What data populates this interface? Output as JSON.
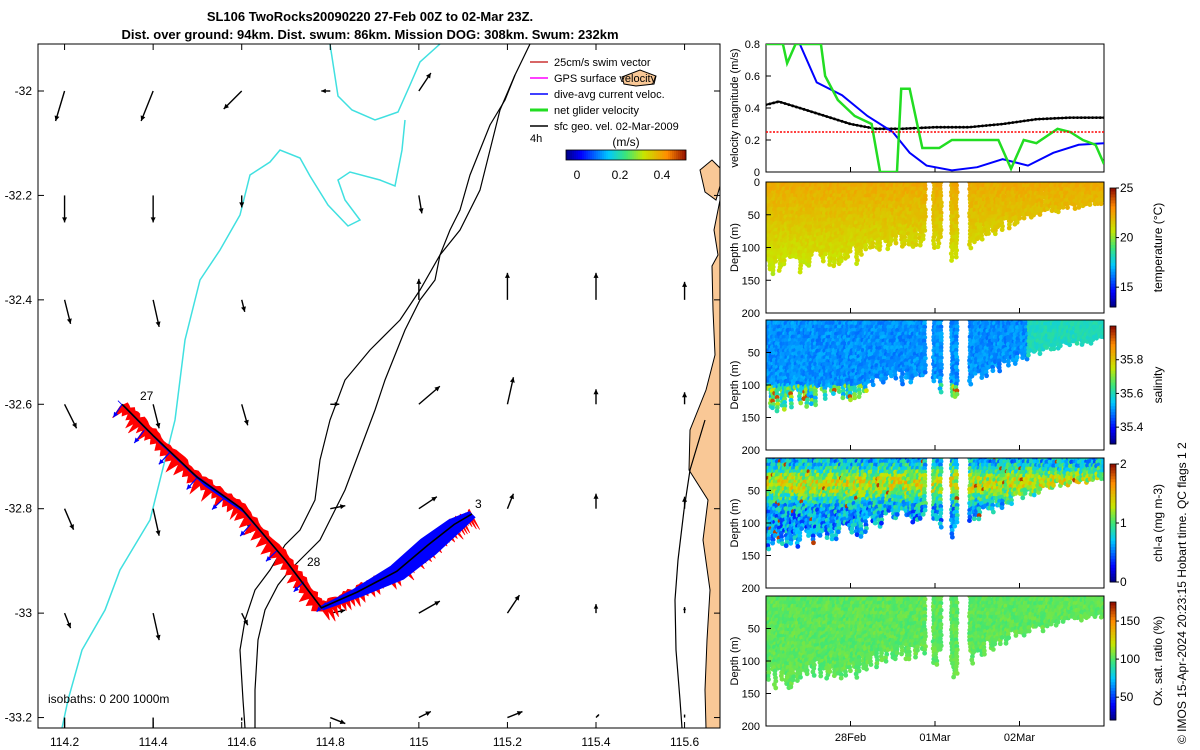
{
  "header": {
    "title_line1": "SL106 TwoRocks20090220 27-Feb 00Z to 02-Mar 23Z.",
    "title_line2": "Dist. over ground: 94km. Dist. swum: 86km. Mission DOG: 308km. Swum: 232km"
  },
  "colors": {
    "land": "#f9c896",
    "isobath_200": "#40e0e0",
    "isobath_1000": "#000000",
    "track_red": "#ff0000",
    "track_blue": "#0000ff",
    "net_green": "#22dd22",
    "swim_red": "#cc3333",
    "gps_magenta": "#ff00ff"
  },
  "map": {
    "legend": {
      "items": [
        {
          "label": "25cm/s swim vector",
          "color": "#cc3333"
        },
        {
          "label": "GPS surface velocity",
          "color": "#ff00ff"
        },
        {
          "label": "dive-avg current veloc.",
          "color": "#0000ff"
        },
        {
          "label": "net glider velocity",
          "color": "#22dd22"
        },
        {
          "label": "sfc geo. vel. 02-Mar-2009",
          "color": "#000000"
        }
      ],
      "time_label": "4h"
    },
    "colorbar": {
      "label": "(m/s)",
      "ticks": [
        "0",
        "0.2",
        "0.4"
      ],
      "range": [
        -0.02,
        0.46
      ]
    },
    "isobaths_label": "isobaths: 0   200  1000m",
    "track_labels": [
      "27",
      "28",
      "3"
    ]
  },
  "panels": {
    "velocity": {
      "ylabel": "velocity magnitude (m/s)",
      "yticks": [
        "0",
        "0.2",
        "0.4",
        "0.6",
        "0.8"
      ]
    },
    "temperature": {
      "ylabel": "Depth (m)",
      "cbar_label": "temperature (°C)",
      "cbar_ticks": [
        "15",
        "20",
        "25"
      ]
    },
    "salinity": {
      "ylabel": "Depth (m)",
      "cbar_label": "salinity",
      "cbar_ticks": [
        "35.4",
        "35.6",
        "35.8"
      ]
    },
    "chla": {
      "ylabel": "Depth (m)",
      "cbar_label": "chl-a (mg m-3)",
      "cbar_ticks": [
        "0",
        "1",
        "2"
      ]
    },
    "oxygen": {
      "ylabel": "Depth (m)",
      "cbar_label": "Ox. sat. ratio (%)",
      "cbar_ticks": [
        "50",
        "100",
        "150"
      ]
    },
    "depth_ticks": [
      "0",
      "50",
      "100",
      "150",
      "200"
    ],
    "xtick_labels": [
      "28Feb",
      "01Mar",
      "02Mar"
    ]
  },
  "footer": {
    "credit": "© IMOS 15-Apr-2024 20:23:15 Hobart time. QC flags 1  2"
  },
  "chart_data": [
    {
      "type": "scatter",
      "name": "map",
      "xlim": [
        114.14,
        115.68
      ],
      "ylim": [
        -33.22,
        -31.91
      ],
      "xticks": [
        114.2,
        114.4,
        114.6,
        114.8,
        115,
        115.2,
        115.4,
        115.6
      ],
      "xtick_labels": [
        "114.2",
        "114.4",
        "114.6",
        "114.8",
        "115",
        "115.2",
        "115.4",
        "115.6"
      ],
      "yticks": [
        -32,
        -32.2,
        -32.4,
        -32.6,
        -32.8,
        -33,
        -33.2
      ],
      "ytick_labels": [
        "-32",
        "-32.2",
        "-32.4",
        "-32.6",
        "-32.8",
        "-33",
        "-33.2"
      ],
      "track": [
        [
          114.33,
          -32.6
        ],
        [
          114.4,
          -32.66
        ],
        [
          114.5,
          -32.74
        ],
        [
          114.6,
          -32.8
        ],
        [
          114.7,
          -32.9
        ],
        [
          114.78,
          -32.99
        ],
        [
          114.86,
          -32.96
        ],
        [
          114.95,
          -32.92
        ],
        [
          115.02,
          -32.87
        ],
        [
          115.08,
          -32.83
        ],
        [
          115.12,
          -32.81
        ]
      ],
      "current_vectors": [
        [
          114.33,
          -32.6,
          0.22,
          0.29
        ],
        [
          114.38,
          -32.65,
          0.25,
          0.28
        ],
        [
          114.44,
          -32.69,
          0.3,
          0.29
        ],
        [
          114.5,
          -32.74,
          0.27,
          0.27
        ],
        [
          114.56,
          -32.78,
          0.3,
          0.25
        ],
        [
          114.62,
          -32.83,
          0.26,
          0.26
        ],
        [
          114.68,
          -32.88,
          0.28,
          0.24
        ],
        [
          114.74,
          -32.94,
          0.25,
          0.22
        ],
        [
          114.79,
          -32.98,
          0.23,
          0.2
        ],
        [
          114.85,
          -32.96,
          0.2,
          0.18
        ],
        [
          114.91,
          -32.94,
          0.17,
          0.17
        ],
        [
          114.97,
          -32.9,
          0.15,
          0.16
        ],
        [
          115.03,
          -32.86,
          0.12,
          0.15
        ],
        [
          115.08,
          -32.83,
          0.1,
          0.14
        ]
      ],
      "sfc_geo_vectors": [
        [
          114.2,
          -32.0,
          -0.03,
          -0.1
        ],
        [
          114.4,
          -32.0,
          -0.04,
          -0.1
        ],
        [
          114.6,
          -32.0,
          -0.06,
          -0.06
        ],
        [
          114.8,
          -32.0,
          -0.03,
          0.0
        ],
        [
          115.0,
          -32.0,
          0.04,
          0.06
        ],
        [
          114.2,
          -32.2,
          0.0,
          -0.09
        ],
        [
          114.4,
          -32.2,
          0.0,
          -0.09
        ],
        [
          114.6,
          -32.2,
          0.0,
          -0.04
        ],
        [
          114.8,
          -32.2,
          0.0,
          0.0
        ],
        [
          115.0,
          -32.2,
          0.01,
          -0.06
        ],
        [
          114.2,
          -32.4,
          0.02,
          -0.08
        ],
        [
          114.4,
          -32.4,
          0.02,
          -0.09
        ],
        [
          114.6,
          -32.4,
          0.01,
          -0.04
        ],
        [
          114.8,
          -32.4,
          0.0,
          0.0
        ],
        [
          115.0,
          -32.4,
          0.0,
          0.07
        ],
        [
          115.2,
          -32.4,
          0.0,
          0.09
        ],
        [
          115.4,
          -32.4,
          0.0,
          0.09
        ],
        [
          115.6,
          -32.4,
          0.0,
          0.06
        ],
        [
          114.2,
          -32.6,
          0.04,
          -0.08
        ],
        [
          114.4,
          -32.6,
          0.02,
          -0.08
        ],
        [
          114.6,
          -32.6,
          0.02,
          -0.07
        ],
        [
          114.8,
          -32.6,
          0.03,
          0.0
        ],
        [
          115.0,
          -32.6,
          0.07,
          0.06
        ],
        [
          115.2,
          -32.6,
          0.02,
          0.09
        ],
        [
          115.4,
          -32.6,
          0.0,
          0.05
        ],
        [
          115.6,
          -32.6,
          0.0,
          0.04
        ],
        [
          114.2,
          -32.8,
          0.03,
          -0.07
        ],
        [
          114.4,
          -32.8,
          0.02,
          -0.09
        ],
        [
          114.6,
          -32.8,
          0.03,
          -0.08
        ],
        [
          114.8,
          -32.8,
          0.05,
          0.01
        ],
        [
          115.0,
          -32.8,
          0.06,
          0.04
        ],
        [
          115.2,
          -32.8,
          0.02,
          0.05
        ],
        [
          115.4,
          -32.8,
          0.0,
          0.05
        ],
        [
          115.6,
          -32.8,
          0.0,
          0.04
        ],
        [
          114.2,
          -33.0,
          0.02,
          -0.05
        ],
        [
          114.4,
          -33.0,
          0.02,
          -0.09
        ],
        [
          114.6,
          -33.0,
          0.02,
          -0.04
        ],
        [
          114.8,
          -33.0,
          0.05,
          0.01
        ],
        [
          115.0,
          -33.0,
          0.07,
          0.04
        ],
        [
          115.2,
          -33.0,
          0.04,
          0.06
        ],
        [
          115.4,
          -33.0,
          0.0,
          0.03
        ],
        [
          115.6,
          -33.0,
          0.0,
          0.02
        ],
        [
          114.2,
          -33.2,
          0.0,
          -0.06
        ],
        [
          114.4,
          -33.2,
          0.0,
          -0.05
        ],
        [
          114.6,
          -33.2,
          0.0,
          -0.01
        ],
        [
          114.8,
          -33.2,
          0.05,
          -0.02
        ],
        [
          115.0,
          -33.2,
          0.04,
          0.02
        ],
        [
          115.2,
          -33.2,
          0.05,
          0.02
        ],
        [
          115.4,
          -33.2,
          0.01,
          0.01
        ],
        [
          115.6,
          -33.2,
          0.0,
          0.01
        ]
      ]
    },
    {
      "type": "line",
      "name": "velocity-magnitude",
      "ylabel": "velocity magnitude (m/s)",
      "ylim": [
        0,
        0.8
      ],
      "xlim": [
        0.0,
        4.0
      ],
      "xtick_positions": [
        1.0,
        2.0,
        3.0
      ],
      "series": [
        {
          "key": "black",
          "color": "#000000",
          "x": [
            0.0,
            0.15,
            0.4,
            0.7,
            1.0,
            1.3,
            1.6,
            2.0,
            2.4,
            2.8,
            3.2,
            3.6,
            4.0
          ],
          "y": [
            0.42,
            0.44,
            0.4,
            0.35,
            0.3,
            0.27,
            0.27,
            0.28,
            0.28,
            0.3,
            0.33,
            0.34,
            0.34
          ]
        },
        {
          "key": "blue",
          "color": "#0000ff",
          "x": [
            0.4,
            0.6,
            0.9,
            1.2,
            1.5,
            1.7,
            1.9,
            2.2,
            2.5,
            2.8,
            3.1,
            3.4,
            3.7,
            4.0
          ],
          "y": [
            0.8,
            0.56,
            0.48,
            0.35,
            0.25,
            0.12,
            0.04,
            0.01,
            0.03,
            0.08,
            0.04,
            0.12,
            0.17,
            0.18
          ]
        },
        {
          "key": "green",
          "color": "#22dd22",
          "x": [
            0.0,
            0.2,
            0.25,
            0.35,
            0.65,
            0.7,
            0.85,
            1.05,
            1.25,
            1.35,
            1.4,
            1.55,
            1.6,
            1.7,
            1.85,
            2.05,
            2.2,
            2.4,
            2.6,
            2.75,
            2.9,
            3.05,
            3.2,
            3.45,
            3.6,
            3.75,
            3.9,
            4.0
          ],
          "y": [
            0.8,
            0.8,
            0.68,
            0.8,
            0.8,
            0.6,
            0.45,
            0.35,
            0.3,
            0.0,
            0.0,
            0.0,
            0.52,
            0.52,
            0.15,
            0.15,
            0.2,
            0.2,
            0.2,
            0.2,
            0.02,
            0.2,
            0.18,
            0.27,
            0.25,
            0.2,
            0.17,
            0.05
          ]
        },
        {
          "key": "red",
          "color": "#ff0000",
          "x": [
            0.0,
            4.0
          ],
          "y": [
            0.25,
            0.25
          ]
        }
      ]
    },
    {
      "type": "scatter",
      "name": "temperature",
      "ylim": [
        200,
        0
      ],
      "value_range": [
        13,
        25
      ],
      "gaps": [
        [
          1.9,
          1.96
        ],
        [
          2.08,
          2.18
        ],
        [
          2.28,
          2.4
        ]
      ],
      "depth_profile": [
        [
          0.0,
          130
        ],
        [
          0.3,
          130
        ],
        [
          0.6,
          120
        ],
        [
          1.0,
          118
        ],
        [
          1.5,
          90
        ],
        [
          1.9,
          90
        ],
        [
          2.3,
          120
        ],
        [
          2.6,
          80
        ],
        [
          3.0,
          60
        ],
        [
          3.5,
          40
        ],
        [
          4.0,
          30
        ]
      ],
      "value_surface": 22,
      "value_bottom": 20
    },
    {
      "type": "scatter",
      "name": "salinity",
      "ylim": [
        200,
        0
      ],
      "value_range": [
        35.3,
        36.0
      ],
      "gaps": [
        [
          1.9,
          1.96
        ],
        [
          2.08,
          2.18
        ],
        [
          2.28,
          2.4
        ]
      ],
      "depth_profile": [
        [
          0.0,
          130
        ],
        [
          0.3,
          130
        ],
        [
          0.6,
          120
        ],
        [
          1.0,
          118
        ],
        [
          1.5,
          90
        ],
        [
          1.9,
          90
        ],
        [
          2.3,
          120
        ],
        [
          2.6,
          80
        ],
        [
          3.0,
          60
        ],
        [
          3.5,
          40
        ],
        [
          4.0,
          30
        ]
      ],
      "value_surface": 35.5,
      "value_bottom": 35.72
    },
    {
      "type": "scatter",
      "name": "chla",
      "ylim": [
        200,
        0
      ],
      "value_range": [
        0,
        2
      ],
      "gaps": [
        [
          1.9,
          1.96
        ],
        [
          2.08,
          2.18
        ],
        [
          2.28,
          2.4
        ]
      ],
      "depth_profile": [
        [
          0.0,
          130
        ],
        [
          0.3,
          130
        ],
        [
          0.6,
          120
        ],
        [
          1.0,
          118
        ],
        [
          1.5,
          90
        ],
        [
          1.9,
          90
        ],
        [
          2.3,
          120
        ],
        [
          2.6,
          80
        ],
        [
          3.0,
          60
        ],
        [
          3.5,
          40
        ],
        [
          4.0,
          30
        ]
      ],
      "value_surface": 0.9,
      "value_bottom": 0.5
    },
    {
      "type": "scatter",
      "name": "oxygen",
      "ylim": [
        200,
        0
      ],
      "value_range": [
        20,
        175
      ],
      "gaps": [
        [
          1.9,
          1.96
        ],
        [
          2.08,
          2.18
        ],
        [
          2.28,
          2.4
        ]
      ],
      "depth_profile": [
        [
          0.0,
          130
        ],
        [
          0.3,
          130
        ],
        [
          0.6,
          120
        ],
        [
          1.0,
          118
        ],
        [
          1.5,
          90
        ],
        [
          1.9,
          90
        ],
        [
          2.3,
          120
        ],
        [
          2.6,
          80
        ],
        [
          3.0,
          60
        ],
        [
          3.5,
          40
        ],
        [
          4.0,
          30
        ]
      ],
      "value_surface": 105,
      "value_bottom": 100
    }
  ]
}
